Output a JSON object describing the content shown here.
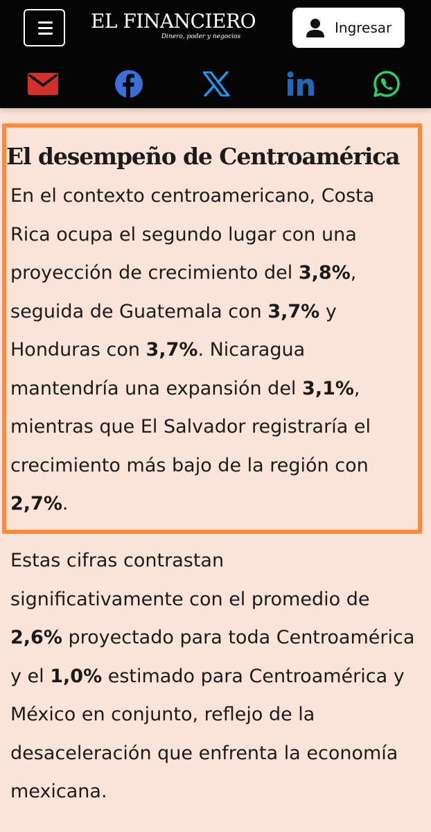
{
  "header": {
    "logo_title": "EL FINANCIERO",
    "logo_tagline": "Dinero, poder y negocios",
    "login_label": "Ingresar"
  },
  "share_icons": [
    "email-icon",
    "facebook-icon",
    "x-icon",
    "linkedin-icon",
    "whatsapp-icon"
  ],
  "colors": {
    "background": "#fae3d8",
    "header": "#050505",
    "highlight": "#fb8a3c",
    "email": "#d0312d",
    "facebook": "#3b6fd8",
    "x": "#1d9bf0",
    "linkedin": "#1f69b8",
    "whatsapp": "#25d366"
  },
  "article": {
    "section_title": "El desempeño de Centroamérica",
    "paragraph1": {
      "l1": "En el contexto centroamericano, Costa",
      "l2": "Rica ocupa el segundo lugar con una",
      "l3a": "proyección de crecimiento del ",
      "l3b": "3,8%",
      "l3c": ",",
      "l4a": "seguida de Guatemala con ",
      "l4b": "3,7%",
      "l4c": " y",
      "l5a": "Honduras con ",
      "l5b": "3,7%",
      "l5c": ". Nicaragua",
      "l6a": "mantendría una expansión del ",
      "l6b": "3,1%",
      "l6c": ",",
      "l7": "mientras que El Salvador registraría el",
      "l8": "crecimiento más bajo de la región con",
      "l9a": "2,7%",
      "l9b": "."
    },
    "paragraph2": {
      "l1": "Estas cifras contrastan",
      "l2": "significativamente con el promedio de",
      "l3a": "2,6%",
      "l3b": " proyectado para toda Centroamérica",
      "l4a": "y el ",
      "l4b": "1,0%",
      "l4c": " estimado para Centroamérica y",
      "l5": "México en conjunto, reflejo de la",
      "l6": "desaceleración que enfrenta la economía",
      "l7": "mexicana."
    }
  }
}
